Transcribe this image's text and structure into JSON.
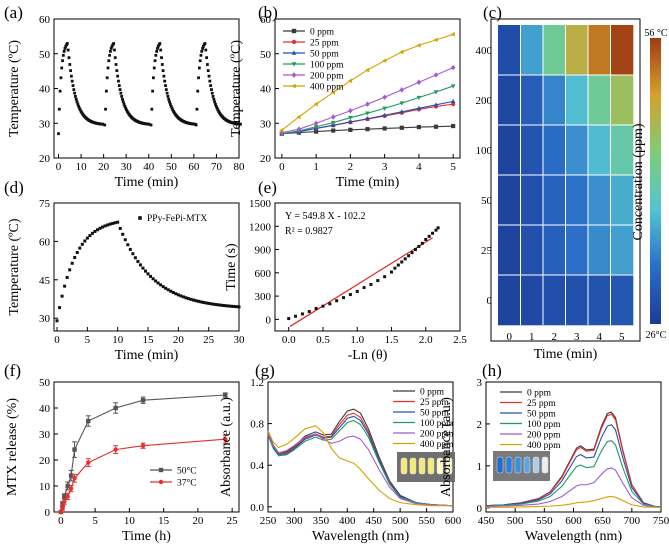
{
  "chart_data": [
    {
      "panel": "(a)",
      "type": "scatter",
      "xlabel": "Time (min)",
      "ylabel": "Temperature (ºC)",
      "xlim": [
        -2,
        80
      ],
      "ylim": [
        20,
        60
      ],
      "xticks": [
        0,
        10,
        20,
        30,
        40,
        50,
        60,
        70,
        80
      ],
      "yticks": [
        20,
        30,
        40,
        50,
        60
      ],
      "cycle_model": {
        "start_times": [
          0,
          20.5,
          41,
          61
        ],
        "baseline": 27,
        "peak": 53,
        "cycle_length": 20,
        "heating_time": 4,
        "settled": 30
      },
      "marker": "square"
    },
    {
      "panel": "(b)",
      "type": "line",
      "xlabel": "Time (min)",
      "ylabel": "Temperature (ºC)",
      "xlim": [
        -0.2,
        5.2
      ],
      "ylim": [
        20,
        60
      ],
      "xticks": [
        0,
        1,
        2,
        3,
        4,
        5
      ],
      "yticks": [
        20,
        30,
        40,
        50,
        60
      ],
      "x": [
        0,
        0.5,
        1,
        1.5,
        2,
        2.5,
        3,
        3.5,
        4,
        4.5,
        5
      ],
      "series": [
        {
          "name": "0 ppm",
          "color": "#3a3a3a",
          "marker": "square",
          "values": [
            27,
            27.3,
            27.6,
            27.9,
            28.1,
            28.3,
            28.5,
            28.7,
            28.9,
            29.0,
            29.2
          ]
        },
        {
          "name": "25 ppm",
          "color": "#e2312f",
          "marker": "circle",
          "values": [
            27,
            27.6,
            28.5,
            29.4,
            30.3,
            31.2,
            32.1,
            33.0,
            34.0,
            34.8,
            35.5
          ]
        },
        {
          "name": "50 ppm",
          "color": "#2a4fb0",
          "marker": "triangle",
          "values": [
            27,
            27.6,
            28.5,
            29.4,
            30.4,
            31.3,
            32.3,
            33.3,
            34.3,
            35.3,
            36.3
          ]
        },
        {
          "name": "100 ppm",
          "color": "#1f9c62",
          "marker": "triangle-down",
          "values": [
            27,
            27.8,
            29.0,
            30.2,
            31.6,
            32.9,
            34.3,
            35.8,
            37.4,
            39.0,
            40.7
          ]
        },
        {
          "name": "200 ppm",
          "color": "#a45bd0",
          "marker": "diamond",
          "values": [
            27.3,
            28.3,
            30.0,
            31.8,
            33.6,
            35.5,
            37.5,
            39.6,
            41.8,
            43.9,
            46.0
          ]
        },
        {
          "name": "400 ppm",
          "color": "#d6a200",
          "marker": "triangle-left",
          "values": [
            28.0,
            31.8,
            35.5,
            38.9,
            42.2,
            45.3,
            48.0,
            50.5,
            52.4,
            54.0,
            55.6
          ]
        }
      ]
    },
    {
      "panel": "(c)",
      "type": "heatmap",
      "xlabel": "Time (min)",
      "ylabel": "Concentration (ppm)",
      "x_categories": [
        "0",
        "1",
        "2",
        "3",
        "4",
        "5"
      ],
      "y_categories": [
        "0",
        "25",
        "50",
        "100",
        "200",
        "400"
      ],
      "values": [
        [
          27.0,
          27.6,
          28.1,
          28.5,
          28.9,
          29.2
        ],
        [
          27.0,
          28.5,
          30.3,
          32.1,
          34.0,
          35.5
        ],
        [
          27.0,
          28.5,
          30.4,
          32.3,
          34.3,
          36.3
        ],
        [
          27.0,
          29.0,
          31.6,
          34.3,
          37.4,
          40.7
        ],
        [
          27.3,
          30.0,
          33.6,
          37.5,
          41.8,
          46.0
        ],
        [
          28.0,
          35.5,
          42.2,
          48.0,
          52.4,
          55.6
        ]
      ],
      "colorbar": {
        "min": 26,
        "max": 56,
        "min_label": "26°C",
        "max_label": "56 °C"
      }
    },
    {
      "panel": "(d)",
      "type": "scatter",
      "xlabel": "Time (min)",
      "ylabel": "Temperature (ºC)",
      "xlim": [
        -0.5,
        30
      ],
      "ylim": [
        25,
        75
      ],
      "xticks": [
        0,
        5,
        10,
        15,
        20,
        25,
        30
      ],
      "yticks": [
        30,
        45,
        60,
        75
      ],
      "legend": "PPy-FePi-MTX",
      "model": {
        "heating_until": 10,
        "start": 29,
        "peak": 67.5,
        "end": 33.5
      },
      "marker": "square"
    },
    {
      "panel": "(e)",
      "type": "scatter",
      "xlabel": "-Ln (θ)",
      "ylabel": "Time (s)",
      "xlim": [
        -0.2,
        2.5
      ],
      "ylim": [
        -150,
        1500
      ],
      "xticks": [
        0.0,
        0.5,
        1.0,
        1.5,
        2.0,
        2.5
      ],
      "xtick_labels": [
        "0.0",
        "0.5",
        "1.0",
        "1.5",
        "2.0",
        "2.5"
      ],
      "yticks": [
        0,
        300,
        600,
        900,
        1200,
        1500
      ],
      "points": [
        [
          0.0,
          10
        ],
        [
          0.1,
          40
        ],
        [
          0.2,
          70
        ],
        [
          0.3,
          100
        ],
        [
          0.4,
          140
        ],
        [
          0.5,
          170
        ],
        [
          0.6,
          200
        ],
        [
          0.7,
          240
        ],
        [
          0.8,
          280
        ],
        [
          0.9,
          320
        ],
        [
          1.0,
          360
        ],
        [
          1.1,
          410
        ],
        [
          1.2,
          450
        ],
        [
          1.3,
          500
        ],
        [
          1.4,
          550
        ],
        [
          1.5,
          610
        ],
        [
          1.55,
          660
        ],
        [
          1.6,
          700
        ],
        [
          1.65,
          740
        ],
        [
          1.7,
          780
        ],
        [
          1.75,
          820
        ],
        [
          1.8,
          860
        ],
        [
          1.85,
          900
        ],
        [
          1.9,
          940
        ],
        [
          1.95,
          980
        ],
        [
          2.0,
          1030
        ],
        [
          2.05,
          1070
        ],
        [
          2.1,
          1110
        ],
        [
          2.15,
          1150
        ],
        [
          2.18,
          1180
        ]
      ],
      "fit": {
        "slope": 549.8,
        "intercept": -102.2,
        "color": "#e0241f"
      },
      "equation": "Y = 549.8 X - 102.2",
      "r2": "R² = 0.9827"
    },
    {
      "panel": "(f)",
      "type": "line",
      "xlabel": "Time (h)",
      "ylabel": "MTX release (%)",
      "xlim": [
        -1,
        26
      ],
      "ylim": [
        0,
        50
      ],
      "xticks": [
        0,
        5,
        10,
        15,
        20,
        25
      ],
      "yticks": [
        0,
        10,
        20,
        30,
        40,
        50
      ],
      "x": [
        0,
        0.25,
        0.5,
        1,
        1.5,
        2,
        4,
        8,
        12,
        24
      ],
      "series": [
        {
          "name": "50°C",
          "color": "#555555",
          "marker": "square",
          "values": [
            0,
            3,
            6,
            10,
            14,
            24,
            35,
            40,
            43,
            45
          ],
          "errors": [
            0,
            1,
            1,
            1.5,
            2,
            3,
            2,
            2,
            1.2,
            0.8
          ]
        },
        {
          "name": "37°C",
          "color": "#e2312f",
          "marker": "circle",
          "values": [
            0,
            1.5,
            4,
            6,
            9,
            13,
            19,
            24,
            25.5,
            28
          ],
          "errors": [
            0,
            0.8,
            1,
            1.2,
            1.2,
            1.5,
            1.5,
            1.5,
            1,
            1.5
          ]
        }
      ],
      "legend": [
        "50°C",
        "37°C"
      ]
    },
    {
      "panel": "(g)",
      "type": "line",
      "xlabel": "Wavelength (nm)",
      "ylabel": "Absorbance (a.u.)",
      "xlim": [
        250,
        600
      ],
      "ylim": [
        -0.05,
        1.2
      ],
      "xticks": [
        250,
        300,
        350,
        400,
        450,
        500,
        550,
        600
      ],
      "yticks": [
        0.0,
        0.4,
        0.8,
        1.2
      ],
      "ytick_labels": [
        "0.0",
        "0.4",
        "0.8",
        "1.2"
      ],
      "x": [
        250,
        260,
        270,
        285,
        300,
        320,
        340,
        355,
        370,
        385,
        400,
        412,
        425,
        440,
        460,
        480,
        500,
        530,
        560,
        600
      ],
      "series": [
        {
          "name": "0 ppm",
          "color": "#3a3a3a",
          "values": [
            0.72,
            0.59,
            0.52,
            0.53,
            0.58,
            0.68,
            0.72,
            0.69,
            0.7,
            0.82,
            0.92,
            0.94,
            0.9,
            0.75,
            0.48,
            0.25,
            0.11,
            0.04,
            0.02,
            0.01
          ]
        },
        {
          "name": "25 ppm",
          "color": "#e2312f",
          "values": [
            0.71,
            0.58,
            0.51,
            0.52,
            0.57,
            0.66,
            0.7,
            0.67,
            0.68,
            0.79,
            0.88,
            0.9,
            0.86,
            0.72,
            0.46,
            0.24,
            0.1,
            0.04,
            0.02,
            0.01
          ]
        },
        {
          "name": "50 ppm",
          "color": "#2a4fb0",
          "values": [
            0.7,
            0.57,
            0.5,
            0.51,
            0.56,
            0.65,
            0.69,
            0.66,
            0.67,
            0.76,
            0.85,
            0.87,
            0.83,
            0.7,
            0.45,
            0.23,
            0.1,
            0.04,
            0.02,
            0.01
          ]
        },
        {
          "name": "100 ppm",
          "color": "#1f9c62",
          "values": [
            0.69,
            0.56,
            0.49,
            0.5,
            0.55,
            0.63,
            0.67,
            0.64,
            0.65,
            0.73,
            0.81,
            0.83,
            0.79,
            0.67,
            0.43,
            0.22,
            0.09,
            0.04,
            0.02,
            0.01
          ]
        },
        {
          "name": "200 ppm",
          "color": "#a45bd0",
          "values": [
            0.7,
            0.58,
            0.52,
            0.54,
            0.59,
            0.67,
            0.7,
            0.65,
            0.61,
            0.63,
            0.67,
            0.68,
            0.65,
            0.55,
            0.36,
            0.19,
            0.08,
            0.03,
            0.02,
            0.01
          ]
        },
        {
          "name": "400 ppm",
          "color": "#d6a200",
          "values": [
            0.73,
            0.62,
            0.57,
            0.6,
            0.66,
            0.75,
            0.78,
            0.71,
            0.56,
            0.47,
            0.44,
            0.42,
            0.36,
            0.27,
            0.16,
            0.08,
            0.04,
            0.02,
            0.01,
            0.01
          ]
        }
      ]
    },
    {
      "panel": "(h)",
      "type": "line",
      "xlabel": "Wavelength (nm)",
      "ylabel": "Absorbance (a.u.)",
      "xlim": [
        450,
        750
      ],
      "ylim": [
        -0.1,
        3
      ],
      "xticks": [
        450,
        500,
        550,
        600,
        650,
        700,
        750
      ],
      "yticks": [
        0,
        1,
        2,
        3
      ],
      "x": [
        450,
        480,
        510,
        540,
        560,
        580,
        595,
        605,
        612,
        622,
        635,
        648,
        658,
        665,
        672,
        685,
        700,
        720,
        740,
        750
      ],
      "series": [
        {
          "name": "0 ppm",
          "color": "#3a3a3a",
          "values": [
            0.05,
            0.07,
            0.12,
            0.22,
            0.38,
            0.75,
            1.15,
            1.42,
            1.48,
            1.38,
            1.4,
            1.95,
            2.25,
            2.28,
            2.15,
            1.35,
            0.55,
            0.12,
            0.03,
            0.02
          ]
        },
        {
          "name": "25 ppm",
          "color": "#e2312f",
          "values": [
            0.05,
            0.07,
            0.12,
            0.21,
            0.37,
            0.72,
            1.12,
            1.38,
            1.44,
            1.35,
            1.37,
            1.9,
            2.2,
            2.23,
            2.1,
            1.32,
            0.54,
            0.12,
            0.03,
            0.02
          ]
        },
        {
          "name": "50 ppm",
          "color": "#2a4fb0",
          "values": [
            0.05,
            0.07,
            0.11,
            0.19,
            0.33,
            0.64,
            0.99,
            1.22,
            1.27,
            1.19,
            1.21,
            1.68,
            1.95,
            1.98,
            1.86,
            1.17,
            0.48,
            0.11,
            0.03,
            0.02
          ]
        },
        {
          "name": "100 ppm",
          "color": "#1f9c62",
          "values": [
            0.04,
            0.06,
            0.09,
            0.16,
            0.27,
            0.51,
            0.8,
            0.98,
            1.02,
            0.96,
            0.98,
            1.36,
            1.58,
            1.6,
            1.5,
            0.94,
            0.39,
            0.09,
            0.03,
            0.02
          ]
        },
        {
          "name": "200 ppm",
          "color": "#a45bd0",
          "values": [
            0.03,
            0.04,
            0.06,
            0.09,
            0.15,
            0.27,
            0.42,
            0.52,
            0.55,
            0.55,
            0.6,
            0.8,
            0.93,
            0.95,
            0.9,
            0.58,
            0.24,
            0.06,
            0.02,
            0.01
          ]
        },
        {
          "name": "400 ppm",
          "color": "#d6a200",
          "values": [
            0.01,
            0.01,
            0.02,
            0.03,
            0.04,
            0.06,
            0.09,
            0.12,
            0.13,
            0.14,
            0.17,
            0.22,
            0.26,
            0.27,
            0.25,
            0.17,
            0.07,
            0.02,
            0.01,
            0.01
          ]
        }
      ]
    }
  ]
}
